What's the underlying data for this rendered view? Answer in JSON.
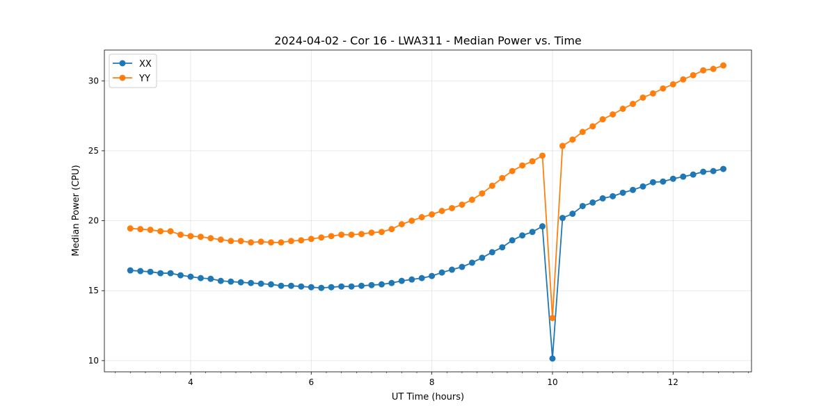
{
  "chart_data": {
    "type": "line",
    "title": "2024-04-02 - Cor 16 - LWA311 - Median Power vs. Time",
    "xlabel": "UT Time (hours)",
    "ylabel": "Median Power (CPU)",
    "xlim": [
      2.57,
      13.3
    ],
    "ylim": [
      9.2,
      32.2
    ],
    "xticks": [
      4,
      6,
      8,
      10,
      12
    ],
    "yticks": [
      10,
      15,
      20,
      25,
      30
    ],
    "xtick_labels": [
      "4",
      "6",
      "8",
      "10",
      "12"
    ],
    "ytick_labels": [
      "10",
      "15",
      "20",
      "25",
      "30"
    ],
    "grid": true,
    "legend": "upper-left",
    "x": [
      3.0,
      3.167,
      3.333,
      3.5,
      3.667,
      3.833,
      4.0,
      4.167,
      4.333,
      4.5,
      4.667,
      4.833,
      5.0,
      5.167,
      5.333,
      5.5,
      5.667,
      5.833,
      6.0,
      6.167,
      6.333,
      6.5,
      6.667,
      6.833,
      7.0,
      7.167,
      7.333,
      7.5,
      7.667,
      7.833,
      8.0,
      8.167,
      8.333,
      8.5,
      8.667,
      8.833,
      9.0,
      9.167,
      9.333,
      9.5,
      9.667,
      9.833,
      10.0,
      10.167,
      10.333,
      10.5,
      10.667,
      10.833,
      11.0,
      11.167,
      11.333,
      11.5,
      11.667,
      11.833,
      12.0,
      12.167,
      12.333,
      12.5,
      12.667,
      12.833
    ],
    "series": [
      {
        "name": "XX",
        "color": "#1f77b4",
        "values": [
          16.45,
          16.4,
          16.35,
          16.25,
          16.25,
          16.1,
          16.0,
          15.9,
          15.85,
          15.7,
          15.65,
          15.6,
          15.55,
          15.5,
          15.45,
          15.35,
          15.35,
          15.3,
          15.25,
          15.2,
          15.25,
          15.3,
          15.3,
          15.35,
          15.4,
          15.45,
          15.55,
          15.7,
          15.8,
          15.9,
          16.05,
          16.3,
          16.5,
          16.7,
          17.0,
          17.35,
          17.75,
          18.1,
          18.6,
          18.95,
          19.2,
          19.6,
          10.15,
          20.2,
          20.5,
          21.05,
          21.3,
          21.6,
          21.75,
          22.0,
          22.2,
          22.45,
          22.75,
          22.8,
          23.0,
          23.15,
          23.3,
          23.5,
          23.55,
          23.7
        ]
      },
      {
        "name": "YY",
        "color": "#ff7f0e",
        "values": [
          19.45,
          19.4,
          19.35,
          19.25,
          19.25,
          19.0,
          18.9,
          18.85,
          18.75,
          18.65,
          18.55,
          18.55,
          18.45,
          18.5,
          18.45,
          18.45,
          18.55,
          18.6,
          18.7,
          18.8,
          18.9,
          19.0,
          19.0,
          19.05,
          19.15,
          19.2,
          19.4,
          19.75,
          20.0,
          20.25,
          20.45,
          20.7,
          20.9,
          21.15,
          21.5,
          21.95,
          22.5,
          23.05,
          23.55,
          23.95,
          24.25,
          24.65,
          13.05,
          25.35,
          25.8,
          26.35,
          26.75,
          27.25,
          27.6,
          28.0,
          28.35,
          28.8,
          29.1,
          29.45,
          29.75,
          30.1,
          30.4,
          30.75,
          30.85,
          31.1
        ]
      }
    ]
  }
}
